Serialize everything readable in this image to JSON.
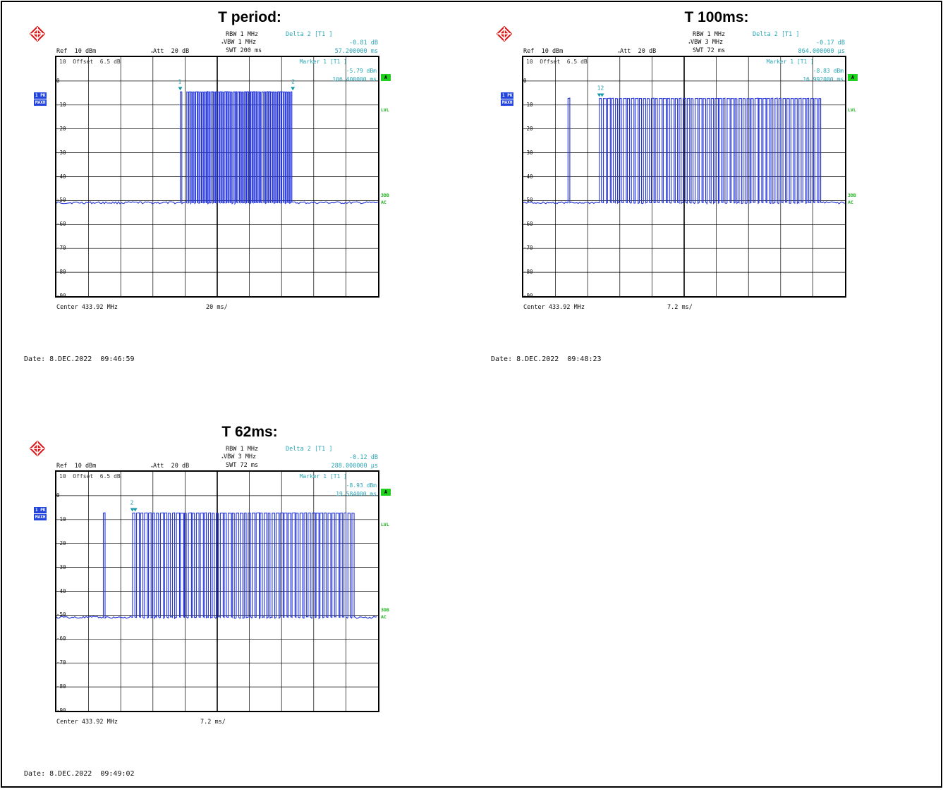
{
  "colors": {
    "trace": "#2233dd",
    "marker": "#1a9aa8",
    "green": "#18b018",
    "side_blue": "#2244dd"
  },
  "panels": [
    {
      "title": "T period:",
      "rbw": "RBW 1 MHz",
      "vbw": "VBW 1 MHz",
      "swt": "SWT 200 ms",
      "ref": "Ref  10 dBm",
      "att": "Att  20 dB",
      "delta_label": "Delta 2 [T1 ]",
      "delta_db": "-0.81 dB",
      "delta_time": "57.200000 ms",
      "offset": "10  Offset  6.5 dB",
      "marker_label": "Marker 1 [T1 ]",
      "marker_db": "-5.79 dBm",
      "marker_time": "106.400000 ms",
      "center": "Center 433.92 MHz",
      "span": "20 ms/",
      "date": "Date: 8.DEC.2022  09:46:59",
      "marker_nums": [
        "1",
        "2"
      ]
    },
    {
      "title": "T 100ms:",
      "rbw": "RBW 1 MHz",
      "vbw": "VBW 3 MHz",
      "swt": "SWT 72 ms",
      "ref": "Ref  10 dBm",
      "att": "Att  20 dB",
      "delta_label": "Delta 2 [T1 ]",
      "delta_db": "-0.17 dB",
      "delta_time": "864.000000 µs",
      "offset": "10  Offset  6.5 dB",
      "marker_label": "Marker 1 [T1 ]",
      "marker_db": "-8.83 dBm",
      "marker_time": "16.992000 ms",
      "center": "Center 433.92 MHz",
      "span": "7.2 ms/",
      "date": "Date: 8.DEC.2022  09:48:23",
      "marker_nums": [
        "12"
      ]
    },
    {
      "title": "T 62ms:",
      "rbw": "RBW 1 MHz",
      "vbw": "VBW 3 MHz",
      "swt": "SWT 72 ms",
      "ref": "Ref  10 dBm",
      "att": "Att  20 dB",
      "delta_label": "Delta 2 [T1 ]",
      "delta_db": "-0.12 dB",
      "delta_time": "288.000000 µs",
      "offset": "10  Offset  6.5 dB",
      "marker_label": "Marker 1 [T1 ]",
      "marker_db": "-8.93 dBm",
      "marker_time": "19.584000 ms",
      "center": "Center 433.92 MHz",
      "span": "7.2 ms/",
      "date": "Date: 8.DEC.2022  09:49:02",
      "marker_nums": [
        "2"
      ]
    }
  ],
  "side": {
    "trace_label": "1 PK",
    "maxh_label": "MAXH",
    "a_label": "A",
    "lvl_label": "LVL",
    "three_db": "3DB",
    "ac": "AC"
  },
  "ytick_labels": [
    "0",
    "-10",
    "-20",
    "-30",
    "-40",
    "-50",
    "-60",
    "-70",
    "-80",
    "-90"
  ],
  "chart_data": [
    {
      "type": "line",
      "title": "T period:",
      "xlabel": "",
      "ylabel": "",
      "ylim": [
        -100,
        10
      ],
      "y_unit": "dBm",
      "x_div": "20 ms/",
      "xlim": [
        0,
        200
      ],
      "noise_floor": -57,
      "bursts": [
        {
          "start": 77,
          "end": 78,
          "level": -6
        },
        {
          "start": 81,
          "end": 147,
          "level": -6,
          "pulse_count": 48
        }
      ],
      "markers": [
        {
          "id": "1",
          "time_ms": 106.4,
          "level_dbm": -5.79
        },
        {
          "id": "2",
          "delta_time_ms": 57.2,
          "delta_db": -0.81
        }
      ]
    },
    {
      "type": "line",
      "title": "T 100ms:",
      "xlabel": "",
      "ylabel": "",
      "ylim": [
        -100,
        10
      ],
      "y_unit": "dBm",
      "x_div": "7.2 ms/",
      "xlim": [
        0,
        72
      ],
      "noise_floor": -57,
      "bursts": [
        {
          "start": 10,
          "end": 10.4,
          "level": -9
        },
        {
          "start": 17,
          "end": 67,
          "level": -9,
          "pulse_count": 56
        }
      ],
      "markers": [
        {
          "id": "1",
          "time_ms": 16.992,
          "level_dbm": -8.83
        },
        {
          "id": "2",
          "delta_time_us": 864,
          "delta_db": -0.17
        }
      ]
    },
    {
      "type": "line",
      "title": "T 62ms:",
      "xlabel": "",
      "ylabel": "",
      "ylim": [
        -100,
        10
      ],
      "y_unit": "dBm",
      "x_div": "7.2 ms/",
      "xlim": [
        0,
        72
      ],
      "noise_floor": -57,
      "bursts": [
        {
          "start": 10.5,
          "end": 10.9,
          "level": -9
        },
        {
          "start": 17,
          "end": 67,
          "level": -9,
          "pulse_count": 56
        }
      ],
      "markers": [
        {
          "id": "1",
          "time_ms": 19.584,
          "level_dbm": -8.93
        },
        {
          "id": "2",
          "delta_time_us": 288,
          "delta_db": -0.12
        }
      ]
    }
  ]
}
